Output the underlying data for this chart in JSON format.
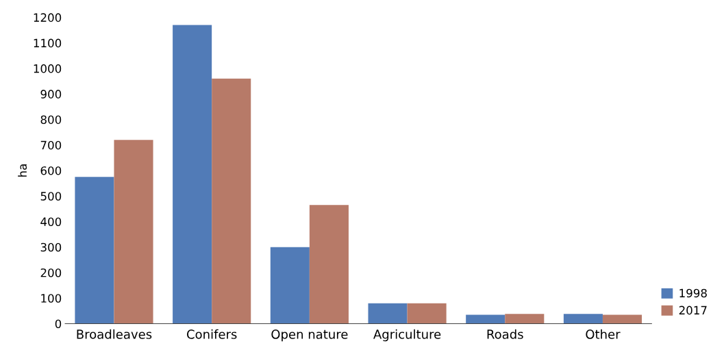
{
  "chart_data": {
    "type": "bar",
    "ylabel": "ha",
    "categories": [
      "Broadleaves",
      "Conifers",
      "Open nature",
      "Agriculture",
      "Roads",
      "Other"
    ],
    "series": [
      {
        "name": "1998",
        "color": "#517bb7",
        "values": [
          575,
          1170,
          300,
          80,
          35,
          38
        ]
      },
      {
        "name": "2017",
        "color": "#b77a68",
        "values": [
          720,
          960,
          465,
          80,
          38,
          35
        ]
      }
    ],
    "ylim": [
      0,
      1200
    ],
    "yticks": [
      0,
      100,
      200,
      300,
      400,
      500,
      600,
      700,
      800,
      900,
      1000,
      1100,
      1200
    ],
    "grid": false,
    "legend": "bottom right"
  }
}
